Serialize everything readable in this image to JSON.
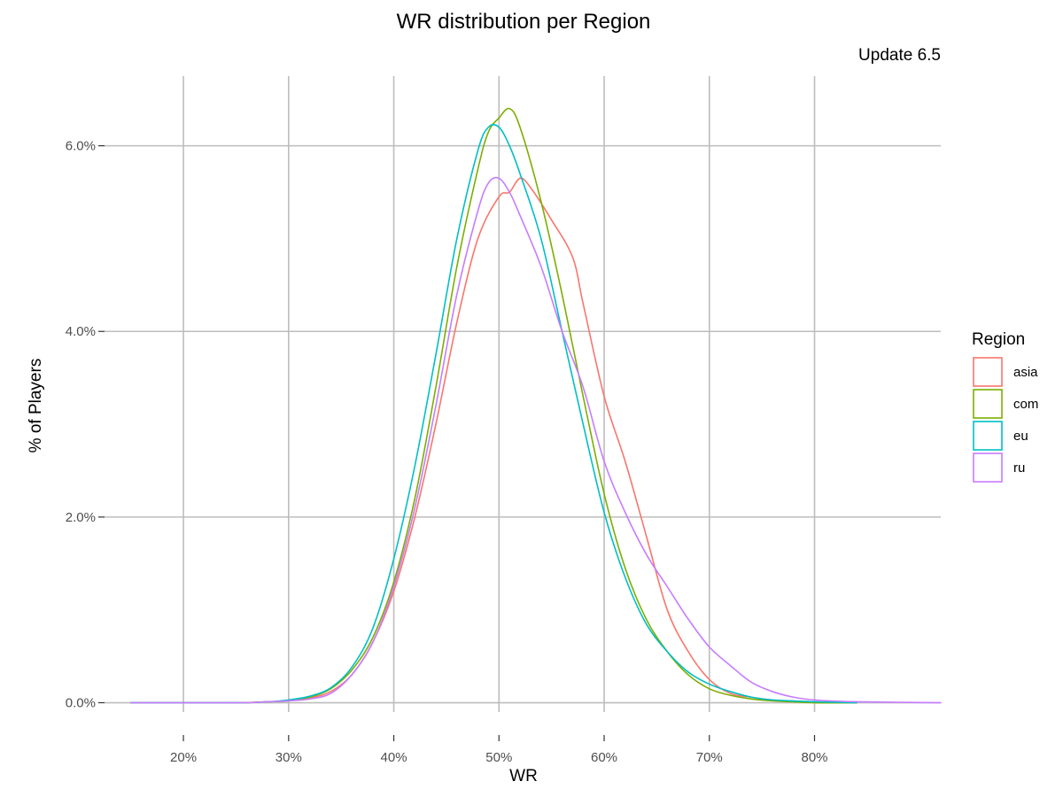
{
  "chart_data": {
    "type": "line",
    "title": "WR distribution per Region",
    "subtitle": "Update 6.5",
    "xlabel": "WR",
    "ylabel": "% of Players",
    "xlim": [
      12.5,
      92
    ],
    "ylim": [
      -0.1,
      6.75
    ],
    "x_ticks": [
      20,
      30,
      40,
      50,
      60,
      70,
      80
    ],
    "x_tick_labels": [
      "20%",
      "30%",
      "40%",
      "50%",
      "60%",
      "70%",
      "80%"
    ],
    "y_ticks": [
      0,
      2,
      4,
      6
    ],
    "y_tick_labels": [
      "0.0%",
      "2.0%",
      "4.0%",
      "6.0%"
    ],
    "grid": true,
    "legend": {
      "title": "Region",
      "position": "right"
    },
    "series": [
      {
        "name": "asia",
        "color": "#F8766D",
        "points": [
          [
            15,
            0
          ],
          [
            25,
            0
          ],
          [
            28,
            0.01
          ],
          [
            30,
            0.02
          ],
          [
            32,
            0.05
          ],
          [
            34,
            0.12
          ],
          [
            36,
            0.3
          ],
          [
            38,
            0.65
          ],
          [
            40,
            1.2
          ],
          [
            42,
            2.0
          ],
          [
            44,
            3.0
          ],
          [
            46,
            4.1
          ],
          [
            48,
            5.0
          ],
          [
            50,
            5.45
          ],
          [
            51,
            5.5
          ],
          [
            52,
            5.65
          ],
          [
            53,
            5.55
          ],
          [
            55,
            5.2
          ],
          [
            57,
            4.8
          ],
          [
            58,
            4.3
          ],
          [
            60,
            3.3
          ],
          [
            62,
            2.6
          ],
          [
            64,
            1.8
          ],
          [
            66,
            1.0
          ],
          [
            68,
            0.55
          ],
          [
            70,
            0.25
          ],
          [
            72,
            0.1
          ],
          [
            74,
            0.06
          ],
          [
            76,
            0.03
          ],
          [
            80,
            0.01
          ],
          [
            84,
            0
          ]
        ]
      },
      {
        "name": "com",
        "color": "#7CAE00",
        "points": [
          [
            15,
            0
          ],
          [
            25,
            0
          ],
          [
            28,
            0.01
          ],
          [
            30,
            0.02
          ],
          [
            32,
            0.06
          ],
          [
            34,
            0.15
          ],
          [
            36,
            0.35
          ],
          [
            38,
            0.7
          ],
          [
            40,
            1.3
          ],
          [
            42,
            2.2
          ],
          [
            44,
            3.4
          ],
          [
            46,
            4.7
          ],
          [
            48,
            5.75
          ],
          [
            49,
            6.15
          ],
          [
            50,
            6.3
          ],
          [
            51,
            6.4
          ],
          [
            52,
            6.2
          ],
          [
            54,
            5.4
          ],
          [
            56,
            4.4
          ],
          [
            58,
            3.3
          ],
          [
            60,
            2.25
          ],
          [
            62,
            1.45
          ],
          [
            64,
            0.9
          ],
          [
            66,
            0.55
          ],
          [
            68,
            0.3
          ],
          [
            70,
            0.15
          ],
          [
            72,
            0.08
          ],
          [
            74,
            0.04
          ],
          [
            76,
            0.02
          ],
          [
            80,
            0
          ],
          [
            84,
            0
          ]
        ]
      },
      {
        "name": "eu",
        "color": "#00BFC4",
        "points": [
          [
            15,
            0
          ],
          [
            25,
            0
          ],
          [
            28,
            0.01
          ],
          [
            30,
            0.03
          ],
          [
            32,
            0.07
          ],
          [
            34,
            0.16
          ],
          [
            36,
            0.38
          ],
          [
            38,
            0.8
          ],
          [
            40,
            1.55
          ],
          [
            42,
            2.55
          ],
          [
            44,
            3.75
          ],
          [
            46,
            5.0
          ],
          [
            48,
            5.95
          ],
          [
            49,
            6.2
          ],
          [
            50,
            6.2
          ],
          [
            51,
            6.0
          ],
          [
            52,
            5.7
          ],
          [
            54,
            5.0
          ],
          [
            56,
            4.0
          ],
          [
            58,
            3.0
          ],
          [
            60,
            2.05
          ],
          [
            62,
            1.35
          ],
          [
            64,
            0.85
          ],
          [
            66,
            0.55
          ],
          [
            68,
            0.33
          ],
          [
            70,
            0.2
          ],
          [
            72,
            0.12
          ],
          [
            74,
            0.06
          ],
          [
            76,
            0.03
          ],
          [
            80,
            0.01
          ],
          [
            84,
            0
          ]
        ]
      },
      {
        "name": "ru",
        "color": "#C77CFF",
        "points": [
          [
            15,
            0
          ],
          [
            25,
            0
          ],
          [
            28,
            0.01
          ],
          [
            30,
            0.02
          ],
          [
            32,
            0.04
          ],
          [
            34,
            0.1
          ],
          [
            36,
            0.3
          ],
          [
            38,
            0.65
          ],
          [
            40,
            1.25
          ],
          [
            42,
            2.1
          ],
          [
            44,
            3.2
          ],
          [
            46,
            4.4
          ],
          [
            48,
            5.3
          ],
          [
            49,
            5.6
          ],
          [
            50,
            5.65
          ],
          [
            51,
            5.5
          ],
          [
            52,
            5.25
          ],
          [
            54,
            4.7
          ],
          [
            56,
            4.0
          ],
          [
            58,
            3.4
          ],
          [
            60,
            2.6
          ],
          [
            62,
            2.05
          ],
          [
            64,
            1.6
          ],
          [
            66,
            1.25
          ],
          [
            68,
            0.9
          ],
          [
            70,
            0.6
          ],
          [
            72,
            0.4
          ],
          [
            74,
            0.22
          ],
          [
            76,
            0.12
          ],
          [
            78,
            0.06
          ],
          [
            80,
            0.03
          ],
          [
            84,
            0.01
          ],
          [
            92,
            0
          ]
        ]
      }
    ]
  }
}
